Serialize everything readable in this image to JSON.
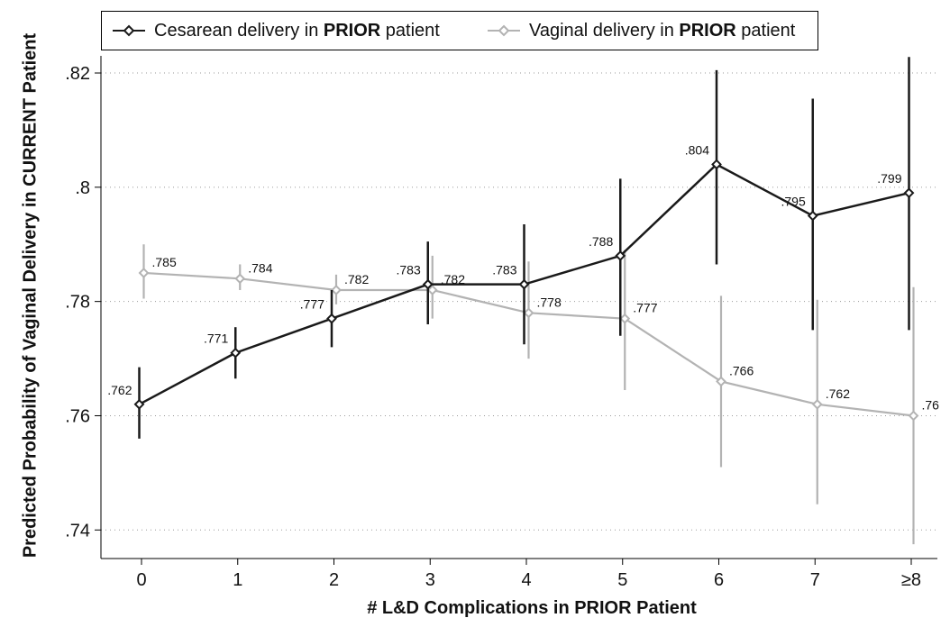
{
  "chart_data": {
    "type": "line",
    "categories": [
      "0",
      "1",
      "2",
      "3",
      "4",
      "5",
      "6",
      "7",
      "≥8"
    ],
    "xlabel": "# L&D Complications in PRIOR Patient",
    "ylabel": "Predicted Probability of Vaginal Delivery in CURRENT Patient",
    "ylim": [
      0.735,
      0.823
    ],
    "yticks": [
      0.74,
      0.76,
      0.78,
      0.8,
      0.82
    ],
    "ytick_labels": [
      ".74",
      ".76",
      ".78",
      ".8",
      ".82"
    ],
    "grid": "horizontal dotted",
    "legend_position": "top",
    "series": [
      {
        "name": "Cesarean delivery in PRIOR patient",
        "legend_prefix": "Cesarean delivery in ",
        "legend_bold": "PRIOR",
        "legend_suffix": " patient",
        "color": "#1a1a1a",
        "values": [
          0.762,
          0.771,
          0.777,
          0.783,
          0.783,
          0.788,
          0.804,
          0.795,
          0.799
        ],
        "labels": [
          ".762",
          ".771",
          ".777",
          ".783",
          ".783",
          ".788",
          ".804",
          ".795",
          ".799"
        ],
        "ci_low": [
          0.756,
          0.7665,
          0.772,
          0.776,
          0.7725,
          0.774,
          0.7865,
          0.775,
          0.775
        ],
        "ci_high": [
          0.7685,
          0.7755,
          0.782,
          0.7905,
          0.7935,
          0.8015,
          0.8205,
          0.8155,
          0.8228
        ]
      },
      {
        "name": "Vaginal delivery in PRIOR patient",
        "legend_prefix": "Vaginal delivery in ",
        "legend_bold": "PRIOR",
        "legend_suffix": " patient",
        "color": "#b3b3b3",
        "values": [
          0.785,
          0.784,
          0.782,
          0.782,
          0.778,
          0.777,
          0.766,
          0.762,
          0.76
        ],
        "labels": [
          ".785",
          ".784",
          ".782",
          ".782",
          ".778",
          ".777",
          ".766",
          ".762",
          ".76"
        ],
        "ci_low": [
          0.7805,
          0.782,
          0.7795,
          0.777,
          0.77,
          0.7645,
          0.751,
          0.7445,
          0.7375
        ],
        "ci_high": [
          0.79,
          0.7865,
          0.7847,
          0.788,
          0.787,
          0.789,
          0.781,
          0.7803,
          0.7825
        ]
      }
    ]
  }
}
